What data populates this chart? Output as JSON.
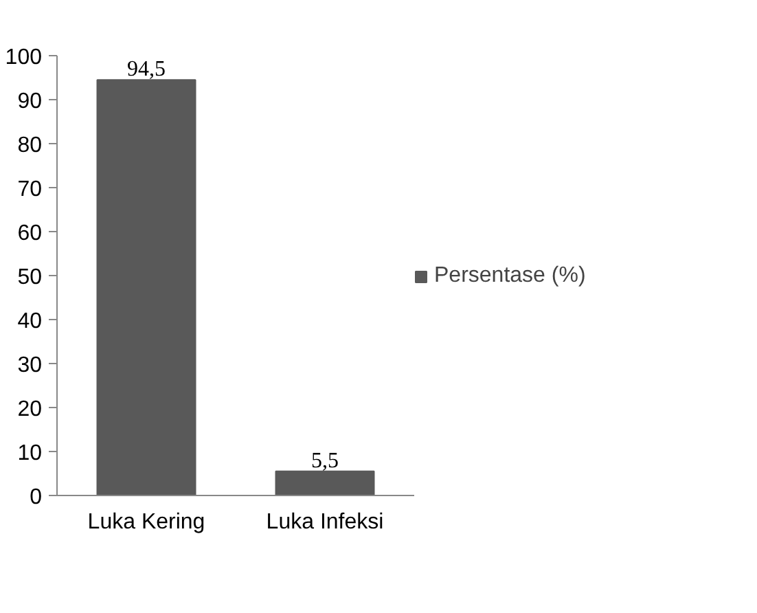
{
  "chart_data": {
    "type": "bar",
    "categories": [
      "Luka Kering",
      "Luka Infeksi"
    ],
    "series": [
      {
        "name": "Persentase (%)",
        "color": "#595959",
        "values": [
          94.5,
          5.5
        ],
        "value_labels": [
          "94,5",
          "5,5"
        ]
      }
    ],
    "ylim": [
      0,
      100
    ],
    "yticks": [
      0,
      10,
      20,
      30,
      40,
      50,
      60,
      70,
      80,
      90,
      100
    ],
    "grid": false,
    "legend": "right"
  }
}
